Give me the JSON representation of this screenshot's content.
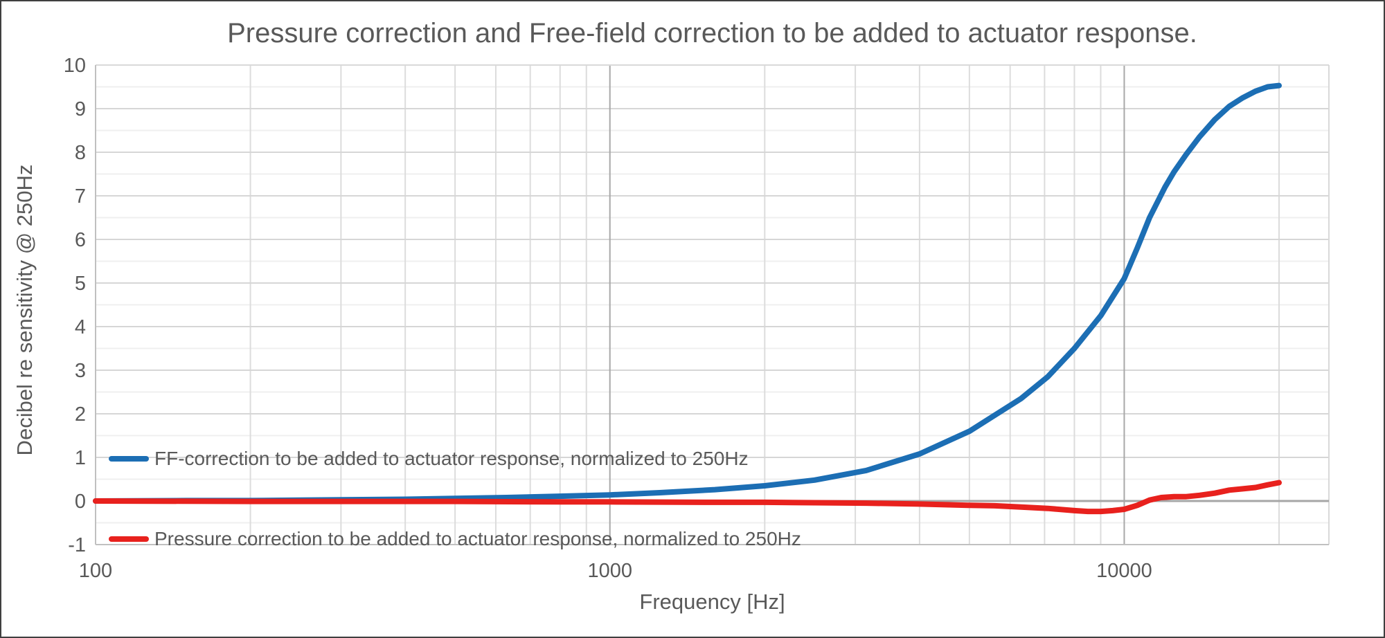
{
  "chart_data": {
    "type": "line",
    "title": "Pressure correction and Free-field correction to be added to actuator response.",
    "xlabel": "Frequency [Hz]",
    "ylabel": "Decibel re sensitivity @ 250Hz",
    "x_scale": "log",
    "xlim": [
      100,
      25000
    ],
    "ylim": [
      -1,
      10
    ],
    "grid": true,
    "x_major_ticks": [
      {
        "value": 100,
        "label": "100"
      },
      {
        "value": 1000,
        "label": "1000"
      },
      {
        "value": 10000,
        "label": "10000"
      }
    ],
    "y_ticks": [
      {
        "value": 10,
        "label": "10"
      },
      {
        "value": 9,
        "label": "9"
      },
      {
        "value": 8,
        "label": "8"
      },
      {
        "value": 7,
        "label": "7"
      },
      {
        "value": 6,
        "label": "6"
      },
      {
        "value": 5,
        "label": "5"
      },
      {
        "value": 4,
        "label": "4"
      },
      {
        "value": 3,
        "label": "3"
      },
      {
        "value": 2,
        "label": "2"
      },
      {
        "value": 1,
        "label": "1"
      },
      {
        "value": 0,
        "label": "0"
      },
      {
        "value": -1,
        "label": "-1"
      }
    ],
    "y_minor_tick_step": 0.5,
    "x_minor_ticks": [
      200,
      300,
      400,
      500,
      600,
      700,
      800,
      900,
      2000,
      3000,
      4000,
      5000,
      6000,
      7000,
      8000,
      9000,
      20000
    ],
    "legend_position": "inside-top-left",
    "series": [
      {
        "name": "FF-correction to be added to actuator response, normalized to 250Hz",
        "color": "#1C6EB4",
        "points": [
          [
            100,
            0.0
          ],
          [
            150,
            0.01
          ],
          [
            200,
            0.01
          ],
          [
            250,
            0.02
          ],
          [
            315,
            0.03
          ],
          [
            400,
            0.04
          ],
          [
            500,
            0.06
          ],
          [
            630,
            0.08
          ],
          [
            800,
            0.11
          ],
          [
            1000,
            0.14
          ],
          [
            1250,
            0.19
          ],
          [
            1600,
            0.26
          ],
          [
            2000,
            0.35
          ],
          [
            2500,
            0.48
          ],
          [
            3150,
            0.7
          ],
          [
            4000,
            1.08
          ],
          [
            5000,
            1.6
          ],
          [
            6300,
            2.35
          ],
          [
            7100,
            2.85
          ],
          [
            8000,
            3.5
          ],
          [
            9000,
            4.25
          ],
          [
            10000,
            5.1
          ],
          [
            10600,
            5.8
          ],
          [
            11200,
            6.5
          ],
          [
            12000,
            7.2
          ],
          [
            12500,
            7.55
          ],
          [
            13200,
            7.95
          ],
          [
            14000,
            8.35
          ],
          [
            15000,
            8.75
          ],
          [
            16000,
            9.05
          ],
          [
            17000,
            9.25
          ],
          [
            18000,
            9.4
          ],
          [
            19000,
            9.5
          ],
          [
            20000,
            9.53
          ]
        ]
      },
      {
        "name": "Pressure correction to be added to actuator response, normalized to 250Hz",
        "color": "#E8211D",
        "points": [
          [
            100,
            0.0
          ],
          [
            200,
            -0.01
          ],
          [
            315,
            -0.01
          ],
          [
            500,
            -0.01
          ],
          [
            800,
            -0.02
          ],
          [
            1000,
            -0.02
          ],
          [
            1600,
            -0.03
          ],
          [
            2000,
            -0.03
          ],
          [
            2500,
            -0.04
          ],
          [
            3150,
            -0.05
          ],
          [
            4000,
            -0.07
          ],
          [
            5000,
            -0.1
          ],
          [
            5600,
            -0.11
          ],
          [
            6300,
            -0.14
          ],
          [
            7100,
            -0.17
          ],
          [
            8000,
            -0.22
          ],
          [
            8500,
            -0.24
          ],
          [
            9000,
            -0.24
          ],
          [
            9500,
            -0.22
          ],
          [
            10000,
            -0.19
          ],
          [
            10600,
            -0.1
          ],
          [
            11200,
            0.02
          ],
          [
            11800,
            0.08
          ],
          [
            12500,
            0.1
          ],
          [
            13200,
            0.1
          ],
          [
            14000,
            0.13
          ],
          [
            15000,
            0.18
          ],
          [
            16000,
            0.25
          ],
          [
            17000,
            0.28
          ],
          [
            18000,
            0.31
          ],
          [
            19000,
            0.37
          ],
          [
            20000,
            0.42
          ]
        ]
      }
    ],
    "style": {
      "text_color": "#595959",
      "grid_minor_h": "#EFEFEF",
      "grid_major_h": "#D6D6D6",
      "grid_minor_v": "#DCDCDC",
      "grid_major_v": "#A8A8A8",
      "zero_line": "#A6A6A6",
      "axis_line": "#C0C0C0",
      "plot_border": "#D9D9D9",
      "line_width": 8
    }
  }
}
